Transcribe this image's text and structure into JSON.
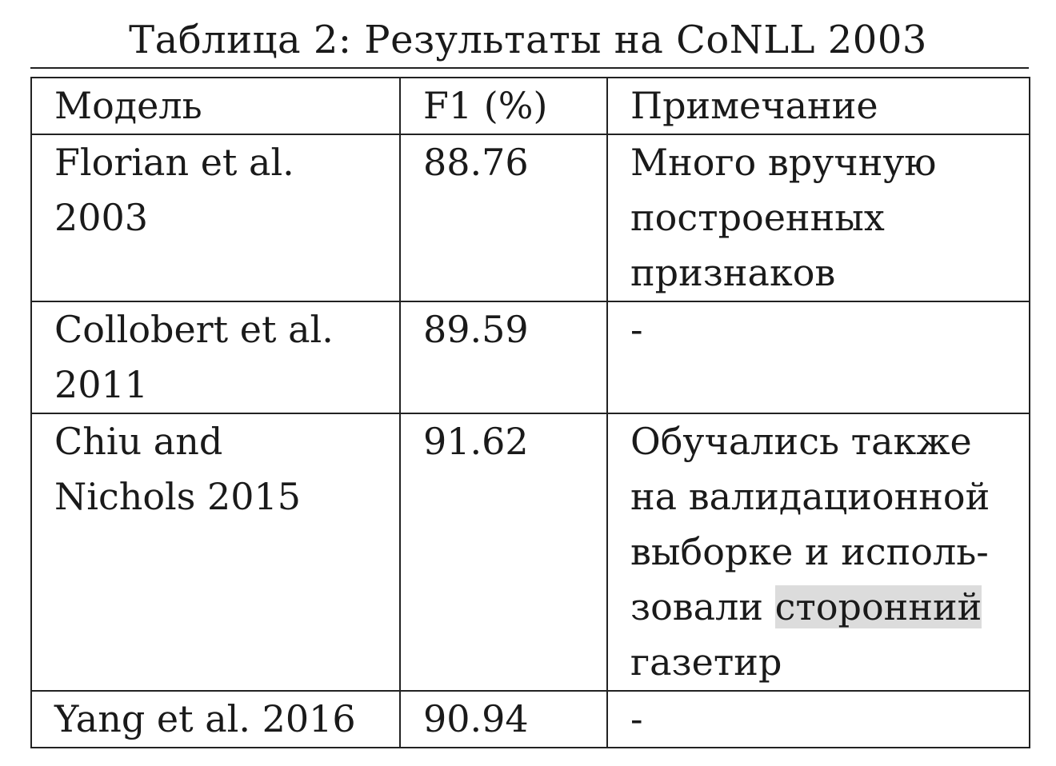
{
  "caption": "Таблица 2: Результаты на CoNLL 2003",
  "table": {
    "headers": [
      "Модель",
      "F1 (%)",
      "Примечание"
    ],
    "rows": [
      {
        "model_lines": [
          "Florian et al.",
          "2003"
        ],
        "f1": "88.76",
        "note_lines": [
          "Много вручную",
          "построенных",
          "признаков"
        ]
      },
      {
        "model_lines": [
          "Collobert et al.",
          "2011"
        ],
        "f1": "89.59",
        "note_lines": [
          "-"
        ]
      },
      {
        "model_lines": [
          "Chiu and",
          "Nichols 2015"
        ],
        "f1": "91.62",
        "note_lines": [
          "Обучались также",
          "на валидационной",
          "выборке и исполь-",
          "зовали ",
          "газетир"
        ],
        "note_highlight": "сторонний"
      },
      {
        "model_lines": [
          "Yang et al. 2016"
        ],
        "f1": "90.94",
        "note_lines": [
          "-"
        ]
      }
    ]
  }
}
